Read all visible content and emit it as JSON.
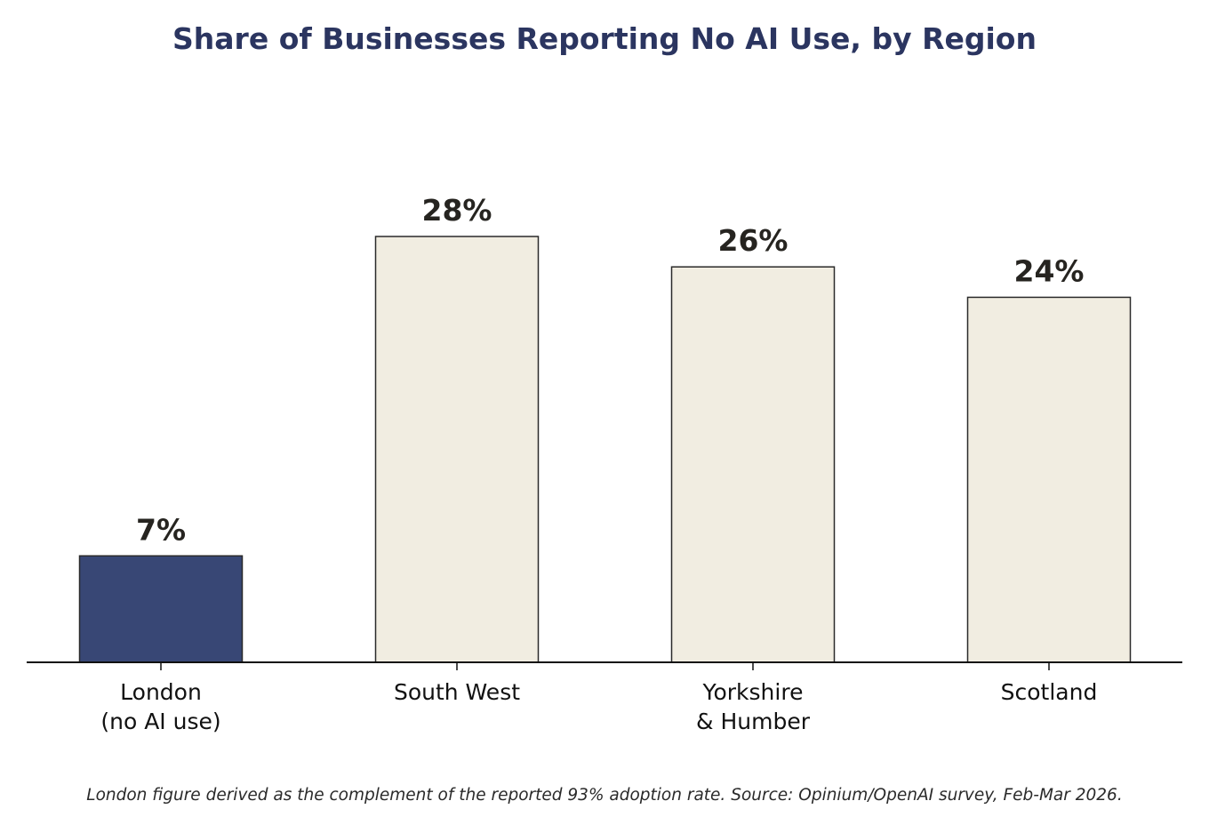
{
  "chart_data": {
    "type": "bar",
    "title": "Share of Businesses Reporting No AI Use, by Region",
    "categories": [
      "London\n(no AI use)",
      "South West",
      "Yorkshire\n& Humber",
      "Scotland"
    ],
    "values": [
      7,
      28,
      26,
      24
    ],
    "value_labels": [
      "7%",
      "28%",
      "26%",
      "24%"
    ],
    "unit": "%",
    "xlabel": "",
    "ylabel": "",
    "ylim": [
      0,
      38
    ],
    "grid": false,
    "y_axis_visible": false,
    "colors": {
      "highlight": "#384775",
      "default": "#f1ede1",
      "edge": "#2a2a2a",
      "label": "#262420",
      "title": "#2b3560"
    },
    "highlight_index": 0
  },
  "footnote": "London figure derived as the complement of the reported 93% adoption rate. Source: Opinium/OpenAI survey, Feb-Mar 2026."
}
